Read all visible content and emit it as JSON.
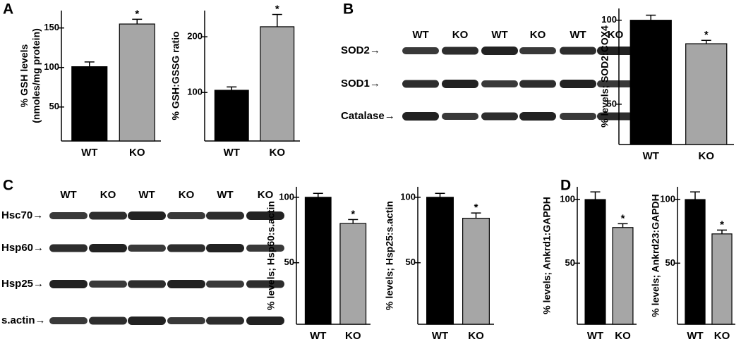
{
  "panels": [
    "A",
    "B",
    "C",
    "D"
  ],
  "blots": [
    {
      "lanes": [
        "WT",
        "KO",
        "WT",
        "KO",
        "WT",
        "KO"
      ],
      "rows": [
        "SOD2→",
        "SOD1→",
        "Catalase→"
      ]
    },
    {
      "lanes": [
        "WT",
        "KO",
        "WT",
        "KO",
        "WT",
        "KO"
      ],
      "rows": [
        "Hsc70→",
        "Hsp60→",
        "Hsp25→",
        "s.actin→"
      ]
    }
  ],
  "chart_data": [
    {
      "type": "bar",
      "ylabel": [
        "% GSH levels",
        "(nmoles/mg protein)"
      ],
      "categories": [
        "WT",
        "KO"
      ],
      "values": [
        101,
        155
      ],
      "errors": [
        6,
        6
      ],
      "colors": [
        "#000000",
        "#a6a6a6"
      ],
      "ylim": [
        7,
        172
      ],
      "yticks": [
        50,
        100,
        150
      ],
      "annotation": "*"
    },
    {
      "type": "bar",
      "ylabel": "% GSH:GSSG ratio",
      "categories": [
        "WT",
        "KO"
      ],
      "values": [
        104,
        218
      ],
      "errors": [
        6,
        22
      ],
      "colors": [
        "#000000",
        "#a6a6a6"
      ],
      "ylim": [
        13,
        247
      ],
      "yticks": [
        100,
        200
      ],
      "annotation": "*"
    },
    {
      "type": "bar",
      "ylabel": "% levels; SOD2:COX4",
      "categories": [
        "WT",
        "KO"
      ],
      "values": [
        100,
        86
      ],
      "errors": [
        3,
        2
      ],
      "colors": [
        "#000000",
        "#a6a6a6"
      ],
      "ylim": [
        26,
        107
      ],
      "yticks": [
        50,
        100
      ],
      "annotation": "*"
    },
    {
      "type": "bar",
      "ylabel": "% levels; Hsp60:s.actin",
      "categories": [
        "WT",
        "KO"
      ],
      "values": [
        100,
        80
      ],
      "errors": [
        3,
        3
      ],
      "colors": [
        "#000000",
        "#a6a6a6"
      ],
      "ylim": [
        3,
        108
      ],
      "yticks": [
        50,
        100
      ],
      "annotation": "*"
    },
    {
      "type": "bar",
      "ylabel": "% levels; Hsp25:s.actin",
      "categories": [
        "WT",
        "KO"
      ],
      "values": [
        100,
        84
      ],
      "errors": [
        3,
        4
      ],
      "colors": [
        "#000000",
        "#a6a6a6"
      ],
      "ylim": [
        3,
        108
      ],
      "yticks": [
        50,
        100
      ],
      "annotation": "*"
    },
    {
      "type": "bar",
      "ylabel": "% levels; Ankrd1:GAPDH",
      "categories": [
        "WT",
        "KO"
      ],
      "values": [
        100,
        78
      ],
      "errors": [
        6,
        3
      ],
      "colors": [
        "#000000",
        "#a6a6a6"
      ],
      "ylim": [
        2,
        110
      ],
      "yticks": [
        50,
        100
      ],
      "annotation": "*"
    },
    {
      "type": "bar",
      "ylabel": "% levels; Ankrd23:GAPDH",
      "categories": [
        "WT",
        "KO"
      ],
      "values": [
        100,
        73
      ],
      "errors": [
        6,
        3
      ],
      "colors": [
        "#000000",
        "#a6a6a6"
      ],
      "ylim": [
        2,
        110
      ],
      "yticks": [
        50,
        100
      ],
      "annotation": "*"
    }
  ]
}
